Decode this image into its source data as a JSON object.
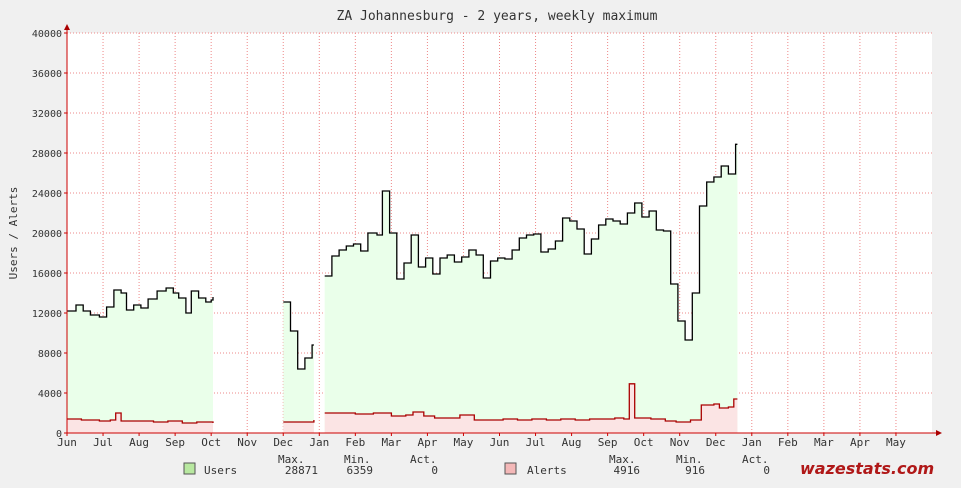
{
  "chart_data": {
    "type": "area",
    "title": "ZA Johannesburg - 2 years, weekly maximum",
    "ylabel": "Users / Alerts",
    "ylim": [
      0,
      40000
    ],
    "yticks": [
      0,
      4000,
      8000,
      12000,
      16000,
      20000,
      24000,
      28000,
      32000,
      36000,
      40000
    ],
    "xlim": [
      0,
      24
    ],
    "months": [
      "Jun",
      "Jul",
      "Aug",
      "Sep",
      "Oct",
      "Nov",
      "Dec",
      "Jan",
      "Feb",
      "Mar",
      "Apr",
      "May",
      "Jun",
      "Jul",
      "Aug",
      "Sep",
      "Oct",
      "Nov",
      "Dec",
      "Jan",
      "Feb",
      "Mar",
      "Apr",
      "May"
    ],
    "grid": true,
    "series": [
      {
        "name": "Users",
        "color": "#000000",
        "fill": "#eaffea",
        "segments": [
          [
            [
              0,
              12200
            ],
            [
              0.25,
              12800
            ],
            [
              0.45,
              12200
            ],
            [
              0.65,
              11800
            ],
            [
              0.9,
              11600
            ],
            [
              1.1,
              12600
            ],
            [
              1.3,
              14300
            ],
            [
              1.5,
              14000
            ],
            [
              1.65,
              12300
            ],
            [
              1.85,
              12800
            ],
            [
              2.05,
              12500
            ],
            [
              2.25,
              13400
            ],
            [
              2.5,
              14200
            ],
            [
              2.75,
              14500
            ],
            [
              2.95,
              14000
            ],
            [
              3.1,
              13500
            ],
            [
              3.3,
              12000
            ],
            [
              3.45,
              14200
            ],
            [
              3.65,
              13500
            ],
            [
              3.85,
              13100
            ],
            [
              4.0,
              13300
            ],
            [
              4.05,
              13600
            ]
          ],
          [
            [
              6.0,
              13100
            ],
            [
              6.2,
              10200
            ],
            [
              6.4,
              6400
            ],
            [
              6.6,
              7500
            ],
            [
              6.8,
              8800
            ],
            [
              6.85,
              8800
            ]
          ],
          [
            [
              7.15,
              15700
            ],
            [
              7.35,
              17700
            ],
            [
              7.55,
              18300
            ],
            [
              7.75,
              18700
            ],
            [
              7.95,
              18900
            ],
            [
              8.15,
              18200
            ],
            [
              8.35,
              20000
            ],
            [
              8.6,
              19800
            ],
            [
              8.75,
              24200
            ],
            [
              8.95,
              20000
            ],
            [
              9.15,
              15400
            ],
            [
              9.35,
              17000
            ],
            [
              9.55,
              19800
            ],
            [
              9.75,
              16600
            ],
            [
              9.95,
              17500
            ],
            [
              10.15,
              15900
            ],
            [
              10.35,
              17500
            ],
            [
              10.55,
              17800
            ],
            [
              10.75,
              17100
            ],
            [
              10.95,
              17600
            ],
            [
              11.15,
              18300
            ],
            [
              11.35,
              17800
            ],
            [
              11.55,
              15500
            ],
            [
              11.75,
              17200
            ],
            [
              11.95,
              17500
            ],
            [
              12.15,
              17400
            ],
            [
              12.35,
              18300
            ],
            [
              12.55,
              19500
            ],
            [
              12.75,
              19800
            ],
            [
              12.95,
              19900
            ],
            [
              13.15,
              18100
            ],
            [
              13.35,
              18400
            ],
            [
              13.55,
              19200
            ],
            [
              13.75,
              21500
            ],
            [
              13.95,
              21200
            ],
            [
              14.15,
              20400
            ],
            [
              14.35,
              17900
            ],
            [
              14.55,
              19400
            ],
            [
              14.75,
              20800
            ],
            [
              14.95,
              21400
            ],
            [
              15.15,
              21200
            ],
            [
              15.35,
              20900
            ],
            [
              15.55,
              22000
            ],
            [
              15.75,
              23000
            ],
            [
              15.95,
              21600
            ],
            [
              16.15,
              22200
            ],
            [
              16.35,
              20300
            ],
            [
              16.55,
              20200
            ],
            [
              16.75,
              14900
            ],
            [
              16.95,
              11200
            ],
            [
              17.15,
              9300
            ],
            [
              17.35,
              14000
            ],
            [
              17.55,
              22700
            ],
            [
              17.75,
              25100
            ],
            [
              17.95,
              25600
            ],
            [
              18.15,
              26700
            ],
            [
              18.35,
              25900
            ],
            [
              18.55,
              28871
            ],
            [
              18.6,
              28871
            ]
          ]
        ]
      },
      {
        "name": "Alerts",
        "color": "#aa0000",
        "fill": "#fbe4e4",
        "segments": [
          [
            [
              0,
              1400
            ],
            [
              0.4,
              1300
            ],
            [
              0.9,
              1200
            ],
            [
              1.2,
              1300
            ],
            [
              1.35,
              2000
            ],
            [
              1.5,
              1200
            ],
            [
              2.0,
              1200
            ],
            [
              2.4,
              1100
            ],
            [
              2.8,
              1200
            ],
            [
              3.2,
              1000
            ],
            [
              3.6,
              1100
            ],
            [
              4.05,
              1000
            ]
          ],
          [
            [
              6.0,
              1100
            ],
            [
              6.5,
              1100
            ],
            [
              6.85,
              1300
            ]
          ],
          [
            [
              7.15,
              2000
            ],
            [
              7.6,
              2000
            ],
            [
              8.0,
              1900
            ],
            [
              8.5,
              2000
            ],
            [
              9.0,
              1700
            ],
            [
              9.4,
              1800
            ],
            [
              9.6,
              2100
            ],
            [
              9.9,
              1700
            ],
            [
              10.2,
              1500
            ],
            [
              10.6,
              1500
            ],
            [
              10.9,
              1800
            ],
            [
              11.3,
              1300
            ],
            [
              11.7,
              1300
            ],
            [
              12.1,
              1400
            ],
            [
              12.5,
              1300
            ],
            [
              12.9,
              1400
            ],
            [
              13.3,
              1300
            ],
            [
              13.7,
              1400
            ],
            [
              14.1,
              1300
            ],
            [
              14.5,
              1400
            ],
            [
              14.9,
              1400
            ],
            [
              15.2,
              1500
            ],
            [
              15.45,
              1400
            ],
            [
              15.6,
              4916
            ],
            [
              15.75,
              1500
            ],
            [
              16.2,
              1400
            ],
            [
              16.6,
              1200
            ],
            [
              16.9,
              1100
            ],
            [
              17.3,
              1300
            ],
            [
              17.6,
              2800
            ],
            [
              17.95,
              2900
            ],
            [
              18.1,
              2500
            ],
            [
              18.35,
              2600
            ],
            [
              18.5,
              3400
            ],
            [
              18.6,
              3400
            ]
          ]
        ]
      }
    ],
    "legend": {
      "position": "bottom",
      "columns": [
        "Max.",
        "Min.",
        "Act."
      ],
      "rows": [
        {
          "name": "Users",
          "swatch": "#b8e8a0",
          "max": "28871",
          "min": "6359",
          "act": "0"
        },
        {
          "name": "Alerts",
          "swatch": "#f4b8b8",
          "max": "4916",
          "min": "916",
          "act": "0"
        }
      ]
    },
    "logo": "wazestats.com"
  }
}
